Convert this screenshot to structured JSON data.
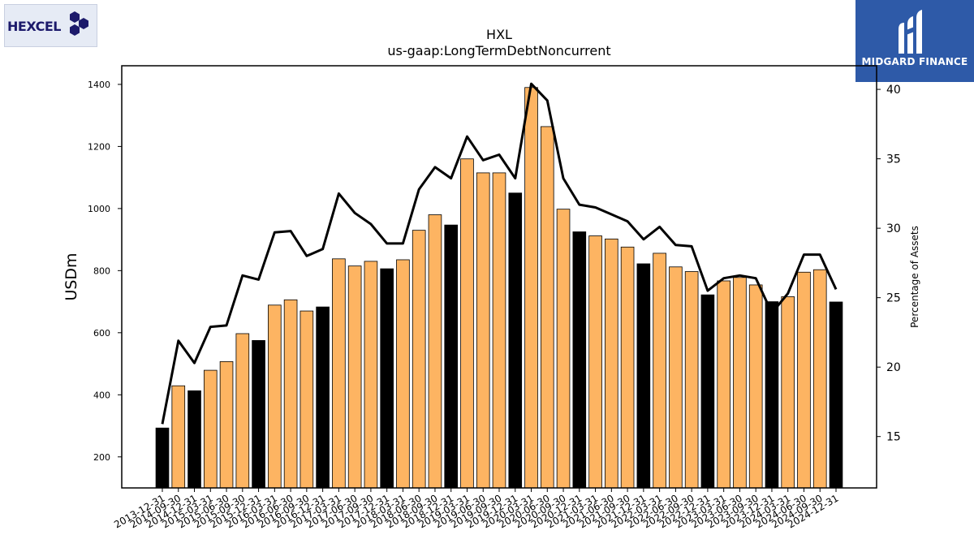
{
  "logos": {
    "left_text": "HEXCEL",
    "right_text": "MIDGARD FINANCE"
  },
  "colors": {
    "annual_bar": "#000000",
    "quarterly_bar": "#fdb462",
    "line": "#000000"
  },
  "chart_data": {
    "type": "bar",
    "title": "HXL",
    "subtitle": "us-gaap:LongTermDebtNoncurrent",
    "ylabel": "USDm",
    "y2label": "Percentage of Assets",
    "ylim": [
      100,
      1460
    ],
    "y2lim": [
      11.3,
      41.7
    ],
    "yticks": [
      200,
      400,
      600,
      800,
      1000,
      1200,
      1400
    ],
    "y2ticks": [
      15,
      20,
      25,
      30,
      35,
      40
    ],
    "grid": false,
    "categories": [
      "2013-12-31",
      "2014-09-30",
      "2014-12-31",
      "2015-03-31",
      "2015-06-30",
      "2015-09-30",
      "2015-12-31",
      "2016-03-31",
      "2016-06-30",
      "2016-09-30",
      "2016-12-31",
      "2017-03-31",
      "2017-06-30",
      "2017-09-30",
      "2017-12-31",
      "2018-03-31",
      "2018-06-30",
      "2018-09-30",
      "2018-12-31",
      "2019-03-31",
      "2019-06-30",
      "2019-09-30",
      "2019-12-31",
      "2020-03-31",
      "2020-06-30",
      "2020-09-30",
      "2020-12-31",
      "2021-03-31",
      "2021-06-30",
      "2021-09-30",
      "2021-12-31",
      "2022-03-31",
      "2022-06-30",
      "2022-09-30",
      "2022-12-31",
      "2023-03-31",
      "2023-06-30",
      "2023-09-30",
      "2023-12-31",
      "2024-03-31",
      "2024-06-30",
      "2024-09-30",
      "2024-12-31"
    ],
    "series": [
      {
        "kind": "bar",
        "values": [
          293,
          429,
          413,
          479,
          507,
          597,
          575,
          689,
          706,
          670,
          683,
          838,
          815,
          830,
          806,
          835,
          930,
          980,
          947,
          1160,
          1115,
          1115,
          1050,
          1390,
          1264,
          998,
          925,
          912,
          902,
          876,
          822,
          856,
          812,
          797,
          722,
          767,
          778,
          754,
          700,
          716,
          795,
          803,
          699
        ],
        "annual": [
          true,
          false,
          true,
          false,
          false,
          false,
          true,
          false,
          false,
          false,
          true,
          false,
          false,
          false,
          true,
          false,
          false,
          false,
          true,
          false,
          false,
          false,
          true,
          false,
          false,
          false,
          true,
          false,
          false,
          false,
          true,
          false,
          false,
          false,
          true,
          false,
          false,
          false,
          true,
          false,
          false,
          false,
          true
        ]
      },
      {
        "kind": "line",
        "axis": "right",
        "values": [
          15.9,
          21.9,
          20.3,
          22.9,
          23.0,
          26.6,
          26.3,
          29.7,
          29.8,
          28.0,
          28.5,
          32.5,
          31.1,
          30.3,
          28.9,
          28.9,
          32.8,
          34.4,
          33.6,
          36.6,
          34.9,
          35.3,
          33.6,
          40.4,
          39.2,
          33.6,
          31.7,
          31.5,
          31.0,
          30.5,
          29.2,
          30.1,
          28.8,
          28.7,
          25.5,
          26.4,
          26.6,
          26.4,
          23.9,
          25.3,
          28.1,
          28.1,
          25.6
        ]
      }
    ]
  }
}
